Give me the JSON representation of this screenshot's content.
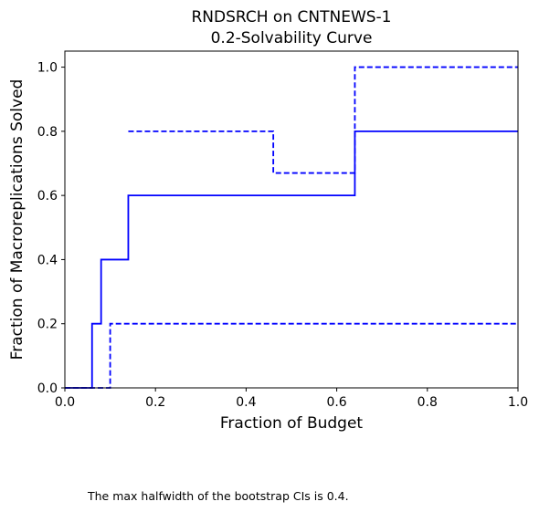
{
  "chart_data": {
    "type": "line",
    "step": "post",
    "title": "RNDSRCH on CNTNEWS-1",
    "subtitle": "0.2-Solvability Curve",
    "xlabel": "Fraction of Budget",
    "ylabel": "Fraction of Macroreplications Solved",
    "xlim": [
      0.0,
      1.0
    ],
    "ylim": [
      0.0,
      1.05
    ],
    "xticks": [
      0.0,
      0.2,
      0.4,
      0.6,
      0.8,
      1.0
    ],
    "xtick_labels": [
      "0.0",
      "0.2",
      "0.4",
      "0.6",
      "0.8",
      "1.0"
    ],
    "yticks": [
      0.0,
      0.2,
      0.4,
      0.6,
      0.8,
      1.0
    ],
    "ytick_labels": [
      "0.0",
      "0.2",
      "0.4",
      "0.6",
      "0.8",
      "1.0"
    ],
    "grid": false,
    "legend": false,
    "series": [
      {
        "style": "solid",
        "color": "#0000ff",
        "x": [
          0.0,
          0.06,
          0.08,
          0.14,
          0.64,
          1.0
        ],
        "y": [
          0.0,
          0.2,
          0.4,
          0.6,
          0.8,
          0.8
        ]
      },
      {
        "style": "dashed",
        "color": "#0000ff",
        "x": [
          0.0,
          0.1,
          1.0
        ],
        "y": [
          0.0,
          0.2,
          0.2
        ]
      },
      {
        "style": "dashed",
        "color": "#0000ff",
        "x": [
          0.14,
          0.46,
          0.64,
          1.0
        ],
        "y": [
          0.8,
          0.67,
          1.0,
          1.0
        ]
      }
    ]
  },
  "note": "The max halfwidth of the bootstrap CIs is 0.4."
}
